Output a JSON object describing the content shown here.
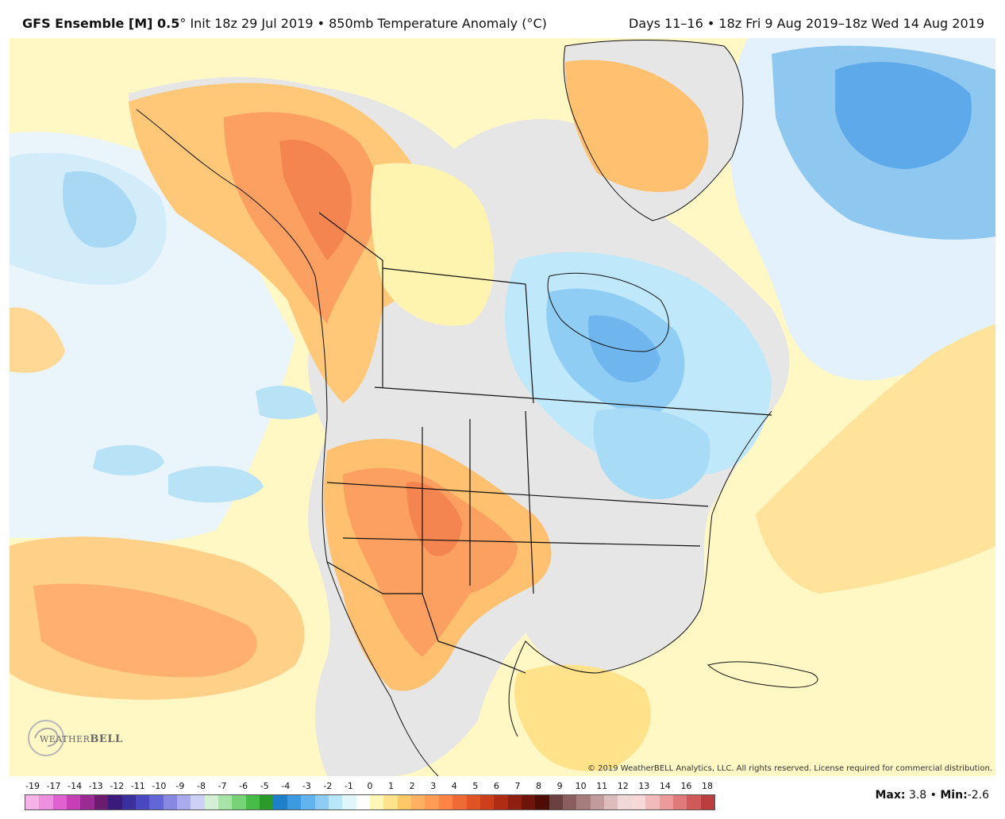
{
  "header": {
    "model": "GFS Ensemble [M] 0.5",
    "degree": "°",
    "init": "Init 18z 29 Jul 2019",
    "sep": "•",
    "field": "850mb Temperature Anomaly (°C)",
    "period": "Days 11–16",
    "valid": "18z Fri 9 Aug 2019–18z Wed 14 Aug 2019"
  },
  "copyright": "© 2019 WeatherBELL Analytics, LLC. All rights reserved. License required for commercial distribution.",
  "logo": {
    "text_pre": "WEATHER",
    "text_bold": "BELL",
    "sub": "Analytics LLC"
  },
  "legend": {
    "labels": [
      "-19",
      "-17",
      "-14",
      "-13",
      "-12",
      "-11",
      "-10",
      "-9",
      "-8",
      "-7",
      "-6",
      "-5",
      "-4",
      "-3",
      "-2",
      "-1",
      "0",
      "1",
      "2",
      "3",
      "4",
      "5",
      "6",
      "7",
      "8",
      "9",
      "10",
      "11",
      "12",
      "13",
      "14",
      "16",
      "18"
    ],
    "colors": [
      "#f5b3e8",
      "#ee8fe0",
      "#e062d2",
      "#c53fb6",
      "#9a2a94",
      "#6b1c6e",
      "#3a1a7a",
      "#3b2f9e",
      "#4a48c0",
      "#6366d6",
      "#8888e2",
      "#aaaaee",
      "#cfd0f5",
      "#d4f0d4",
      "#a6e5a6",
      "#76d476",
      "#48bc48",
      "#2a9b2a",
      "#1f7fc9",
      "#3d9ae0",
      "#62b4ee",
      "#8dcdf5",
      "#b8e6fb",
      "#e0f5fc",
      "#ffffff",
      "#fff7b8",
      "#ffe28a",
      "#ffc866",
      "#ffb060",
      "#ff9b55",
      "#ff8446",
      "#f06a35",
      "#e05424",
      "#cc3f1a",
      "#b02d14",
      "#8f1f10",
      "#6e140b",
      "#4e0c07",
      "#6b4040",
      "#8a5e5e",
      "#a67c7c",
      "#c29c9c",
      "#dcbcbc",
      "#f0d8d8",
      "#f7d8d8",
      "#f2baba",
      "#ec9a9a",
      "#e07a7a",
      "#d05a5a",
      "#bb3e3e"
    ]
  },
  "stats": {
    "max_label": "Max:",
    "max": "3.8",
    "sep": "•",
    "min_label": "Min:",
    "min": "-2.6"
  },
  "colors": {
    "neutral": "#e9e9e9",
    "weak_warm": "#fff7b8",
    "warm1": "#ffe28a",
    "warm2": "#ffc070",
    "warm3": "#ffa060",
    "warm4": "#f58550",
    "weak_cold": "#e0f5fc",
    "cold1": "#b8e6fb",
    "cold2": "#8dcdf5",
    "cold3": "#62b4ee",
    "cold4": "#4a9de6"
  }
}
